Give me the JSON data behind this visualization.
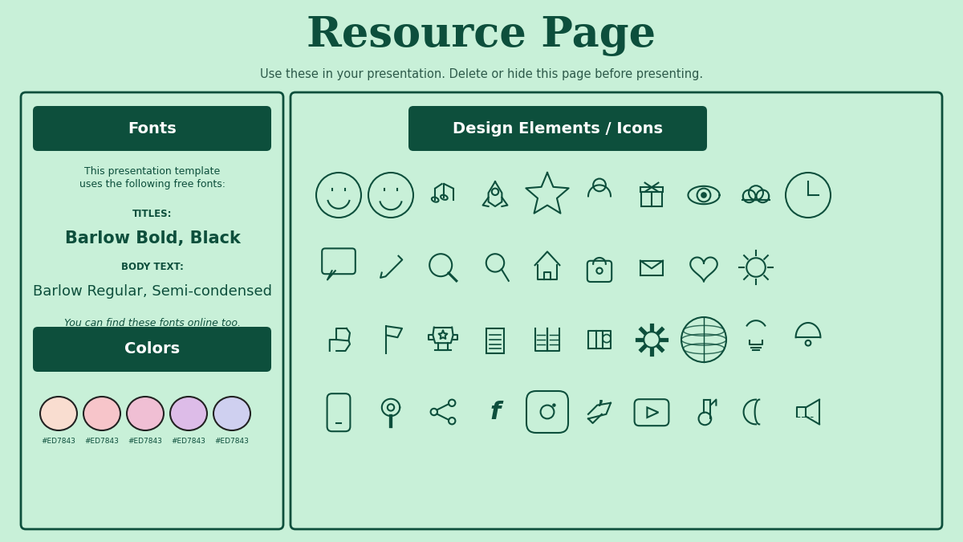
{
  "bg_color": "#c8f0d8",
  "title": "Resource Page",
  "subtitle": "Use these in your presentation. Delete or hide this page before presenting.",
  "title_color": "#0d4f3c",
  "subtitle_color": "#2d5a4a",
  "dark_green": "#0d4f3c",
  "box_border_color": "#0d4f3c",
  "box_bg": "#c8f0d8",
  "fonts_title": "Fonts",
  "fonts_desc_line1": "This presentation template",
  "fonts_desc_line2": "uses the following free fonts:",
  "titles_label": "TITLES:",
  "titles_font": "Barlow Bold, Black",
  "body_label": "BODY TEXT:",
  "body_font": "Barlow Regular, Semi-condensed",
  "find_fonts": "You can find these fonts online too.",
  "colors_title": "Colors",
  "color_circles": [
    "#f9ddd0",
    "#f7c5ca",
    "#f0bfd4",
    "#ddbce8",
    "#cfd0f0"
  ],
  "color_labels": [
    "#ED7843",
    "#ED7843",
    "#ED7843",
    "#ED7843",
    "#ED7843"
  ],
  "design_title": "Design Elements / Icons",
  "icon_row1": [
    "☺",
    "☹",
    "♫",
    "▲",
    "☆",
    "○",
    "□",
    "◎",
    "☁",
    "○"
  ],
  "icon_row2": [
    "○",
    "∕",
    "○",
    "†",
    "△",
    "□",
    "✉",
    "♥",
    "☀"
  ],
  "icon_row3": [
    "▲",
    "⚐",
    "○",
    "□",
    "□",
    "□",
    "⚙",
    "○",
    "○",
    "○"
  ],
  "icon_row4": [
    "□",
    "○",
    "○",
    "f",
    "□",
    "▲",
    "▶",
    "♪",
    "☽",
    "○"
  ]
}
